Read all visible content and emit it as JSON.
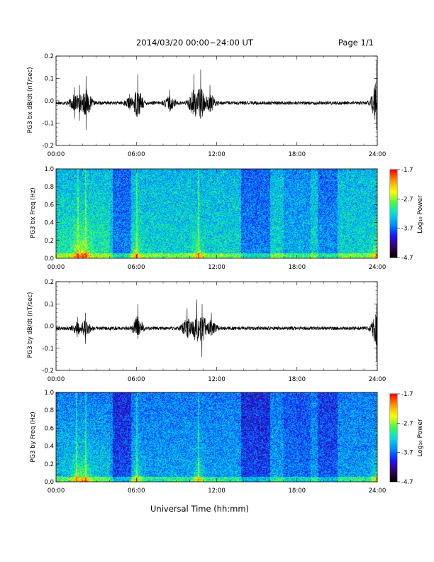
{
  "header": {
    "date_range": "2014/03/20   00:00−24:00 UT",
    "page": "Page 1/1"
  },
  "footer": {
    "xlabel": "Universal Time (hh:mm)"
  },
  "colorbar": {
    "label": "Log₁₀ Power",
    "ticks": [
      "-1.7",
      "-2.7",
      "-3.7",
      "-4.7"
    ]
  },
  "colors": {
    "trace": "#000000",
    "cmap": [
      "#000000",
      "#3a006a",
      "#1a1aff",
      "#0090ff",
      "#00e0e0",
      "#40ff40",
      "#ffff00",
      "#ff9900",
      "#ff0000"
    ]
  },
  "chart_data": [
    {
      "type": "line",
      "ylabel": "PG3 bx dB/dt (nT/sec)",
      "xticks": [
        "00:00",
        "06:00",
        "12:00",
        "18:00",
        "24:00"
      ],
      "xlim": [
        0,
        24
      ],
      "ylim": [
        -0.2,
        0.2
      ],
      "yticks": [
        "0.2",
        "0.1",
        "0.0",
        "-0.1",
        "-0.2"
      ],
      "baseline": -0.01,
      "bursts": [
        {
          "t": 1.4,
          "max": 0.06,
          "min": -0.08
        },
        {
          "t": 1.75,
          "max": 0.07,
          "min": -0.09
        },
        {
          "t": 2.25,
          "max": 0.11,
          "min": -0.13
        },
        {
          "t": 5.5,
          "max": 0.03,
          "min": -0.04
        },
        {
          "t": 6.1,
          "max": 0.12,
          "min": -0.06
        },
        {
          "t": 8.5,
          "max": 0.05,
          "min": -0.05
        },
        {
          "t": 10.3,
          "max": 0.12,
          "min": -0.05
        },
        {
          "t": 10.8,
          "max": 0.14,
          "min": -0.08
        },
        {
          "t": 11.5,
          "max": 0.07,
          "min": -0.05
        },
        {
          "t": 23.95,
          "max": 0.18,
          "min": -0.13
        }
      ]
    },
    {
      "type": "heatmap",
      "ylabel": "PG3 bx Freq (Hz)",
      "xticks": [
        "00:00",
        "06:00",
        "12:00",
        "18:00",
        "24:00"
      ],
      "xlim": [
        0,
        24
      ],
      "ylim": [
        0.0,
        1.0
      ],
      "yticks": [
        "1.0",
        "0.8",
        "0.6",
        "0.4",
        "0.2",
        "0.0"
      ],
      "zlim": [
        -4.7,
        -1.7
      ]
    },
    {
      "type": "line",
      "ylabel": "PG3 by dB/dt (nT/sec)",
      "xticks": [
        "00:00",
        "06:00",
        "12:00",
        "18:00",
        "24:00"
      ],
      "xlim": [
        0,
        24
      ],
      "ylim": [
        -0.2,
        0.2
      ],
      "yticks": [
        "0.2",
        "0.1",
        "0.0",
        "-0.1",
        "-0.2"
      ],
      "baseline": -0.01,
      "bursts": [
        {
          "t": 1.6,
          "max": 0.04,
          "min": -0.05
        },
        {
          "t": 2.2,
          "max": 0.06,
          "min": -0.08
        },
        {
          "t": 6.1,
          "max": 0.1,
          "min": -0.04
        },
        {
          "t": 9.8,
          "max": 0.08,
          "min": -0.05
        },
        {
          "t": 10.5,
          "max": 0.12,
          "min": -0.04
        },
        {
          "t": 10.9,
          "max": 0.1,
          "min": -0.14
        },
        {
          "t": 11.6,
          "max": 0.06,
          "min": -0.04
        },
        {
          "t": 23.95,
          "max": 0.1,
          "min": -0.16
        }
      ]
    },
    {
      "type": "heatmap",
      "ylabel": "PG3 by Freq (Hz)",
      "xticks": [
        "00:00",
        "06:00",
        "12:00",
        "18:00",
        "24:00"
      ],
      "xlim": [
        0,
        24
      ],
      "ylim": [
        0.0,
        1.0
      ],
      "yticks": [
        "1.0",
        "0.8",
        "0.6",
        "0.4",
        "0.2",
        "0.0"
      ],
      "zlim": [
        -4.7,
        -1.7
      ]
    }
  ]
}
